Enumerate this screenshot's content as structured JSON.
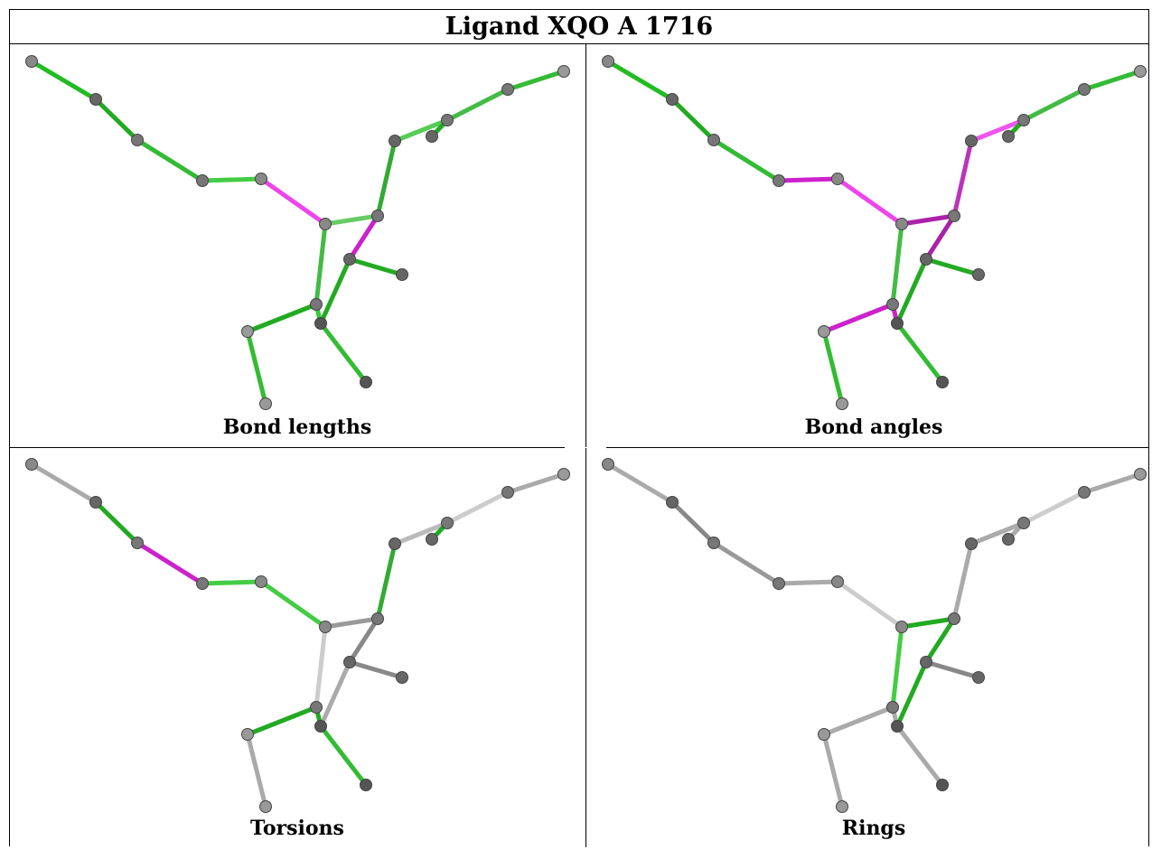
{
  "title": "Ligand XQO A 1716",
  "panels": [
    {
      "caption": "Bond lengths",
      "bond_colors": [
        "#22bb22",
        "#22aa22",
        "#33bb33",
        "#44cc44",
        "#ee44ee",
        "#66cc66",
        "#44bb44",
        "#33aa33",
        "#55cc55",
        "#44bb44",
        "#cc22cc",
        "#22aa22",
        "#22aa22",
        "#33cc33",
        "#22aa22",
        "#33bb33",
        "#33bb33",
        "#22aa22",
        "#33bb33"
      ]
    },
    {
      "caption": "Bond angles",
      "bond_colors": [
        "#22bb22",
        "#22aa22",
        "#33bb33",
        "#cc22cc",
        "#ee44ee",
        "#aa22aa",
        "#44bb44",
        "#bb33bb",
        "#ee55ee",
        "#44bb44",
        "#aa22aa",
        "#22aa22",
        "#22aa22",
        "#cc22cc",
        "#cc22cc",
        "#33bb33",
        "#33bb33",
        "#22aa22",
        "#33bb33"
      ]
    },
    {
      "caption": "Torsions",
      "bond_colors": [
        "#aaaaaa",
        "#22aa22",
        "#cc22cc",
        "#44cc44",
        "#44cc44",
        "#999999",
        "#cccccc",
        "#33aa33",
        "#bbbbbb",
        "#cccccc",
        "#888888",
        "#888888",
        "#aaaaaa",
        "#22aa22",
        "#22aa22",
        "#33bb33",
        "#aaaaaa",
        "#22aa22",
        "#aaaaaa"
      ]
    },
    {
      "caption": "Rings",
      "bond_colors": [
        "#aaaaaa",
        "#888888",
        "#999999",
        "#aaaaaa",
        "#cccccc",
        "#22aa22",
        "#44cc44",
        "#aaaaaa",
        "#aaaaaa",
        "#cccccc",
        "#22aa22",
        "#888888",
        "#22aa22",
        "#aaaaaa",
        "#aaaaaa",
        "#aaaaaa",
        "#aaaaaa",
        "#aaaaaa",
        "#aaaaaa"
      ]
    }
  ]
}
